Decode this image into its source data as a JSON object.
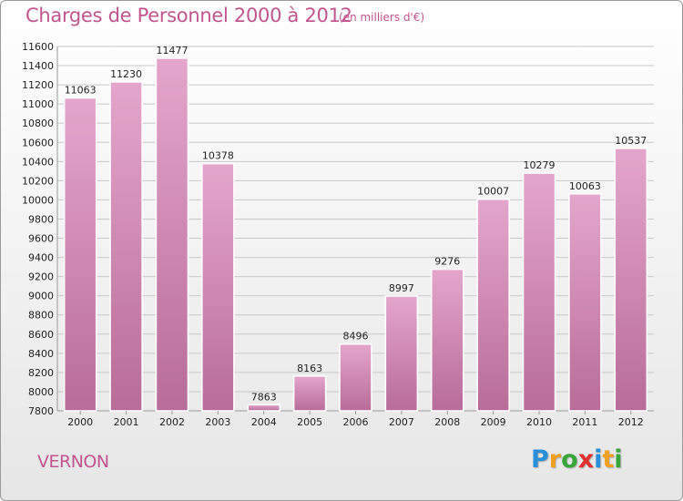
{
  "title": "Charges de Personnel 2000 à 2012",
  "unit": "(en milliers d'€)",
  "city": "VERNON",
  "logo": [
    "P",
    "r",
    "o",
    "x",
    "i",
    "t",
    "i"
  ],
  "logo_colors": [
    "#2a8fd6",
    "#f0a020",
    "#3aa53a",
    "#e03030",
    "#2a8fd6",
    "#f0a020",
    "#3aa53a"
  ],
  "colors": {
    "accent": "#c0558f",
    "bar_top": "#e4a6cc",
    "bar_bottom": "#b86c99",
    "grid": "#c8c8c8"
  },
  "chart_data": {
    "type": "bar",
    "categories": [
      "2000",
      "2001",
      "2002",
      "2003",
      "2004",
      "2005",
      "2006",
      "2007",
      "2008",
      "2009",
      "2010",
      "2011",
      "2012"
    ],
    "values": [
      11063,
      11230,
      11477,
      10378,
      7863,
      8163,
      8496,
      8997,
      9276,
      10007,
      10279,
      10063,
      10537
    ],
    "ylim": [
      7800,
      11600
    ],
    "ystep": 200,
    "grid": true,
    "data_labels": true
  }
}
